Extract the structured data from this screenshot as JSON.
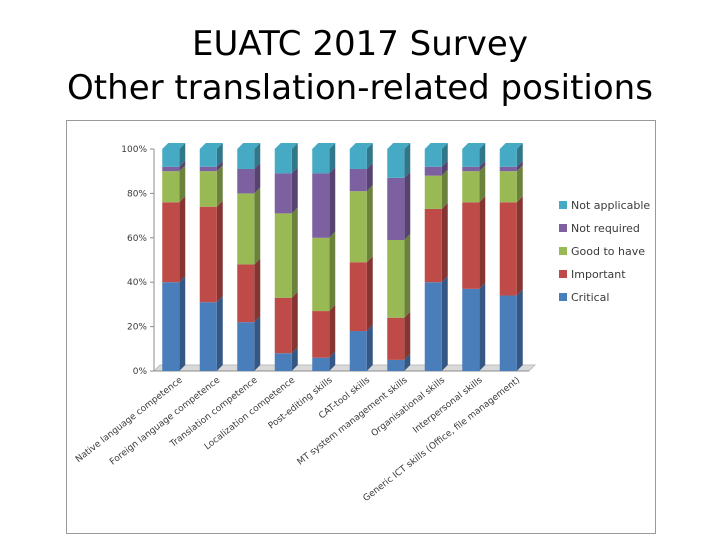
{
  "slide": {
    "title_line1": "EUATC 2017 Survey",
    "title_line2": "Other translation-related positions"
  },
  "chart_data": {
    "type": "bar",
    "stacked": true,
    "normalized": true,
    "categories": [
      "Native language competence",
      "Foreign language competence",
      "Translation competence",
      "Localization competence",
      "Post-editing skills",
      "CAT-tool skills",
      "MT system management skills",
      "Organisational skills",
      "Interpersonal skills",
      "Generic ICT skills (Office, file management)"
    ],
    "series": [
      {
        "name": "Critical",
        "color": "#4a7ebb",
        "values": [
          40,
          31,
          22,
          8,
          6,
          18,
          5,
          40,
          37,
          34
        ]
      },
      {
        "name": "Important",
        "color": "#be4b48",
        "values": [
          36,
          43,
          26,
          25,
          21,
          31,
          19,
          33,
          39,
          42
        ]
      },
      {
        "name": "Good to have",
        "color": "#98b954",
        "values": [
          14,
          16,
          32,
          38,
          33,
          32,
          35,
          15,
          14,
          14
        ]
      },
      {
        "name": "Not required",
        "color": "#7d60a0",
        "values": [
          2,
          2,
          11,
          18,
          29,
          10,
          28,
          4,
          2,
          2
        ]
      },
      {
        "name": "Not applicable",
        "color": "#46aac5",
        "values": [
          8,
          8,
          9,
          11,
          11,
          9,
          13,
          8,
          8,
          8
        ]
      }
    ],
    "y_ticks": [
      "0%",
      "20%",
      "40%",
      "60%",
      "80%",
      "100%"
    ],
    "ylim": [
      0,
      100
    ],
    "legend_position": "right",
    "grid": false
  }
}
